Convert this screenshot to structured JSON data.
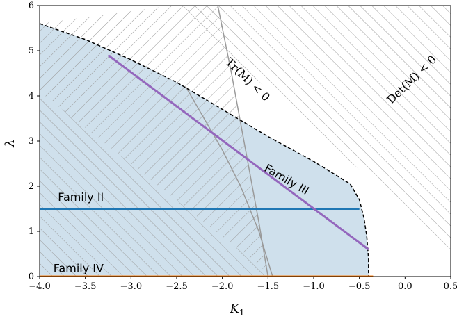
{
  "chart_data": {
    "type": "line",
    "xlabel_main": "K",
    "xlabel_sub": "1",
    "ylabel": "λ",
    "xlim": [
      -4.0,
      0.5
    ],
    "ylim": [
      0,
      6
    ],
    "xticks": [
      "−4.0",
      "−3.5",
      "−3.0",
      "−2.5",
      "−2.0",
      "−1.5",
      "−1.0",
      "−0.5",
      "0.0",
      "0.5"
    ],
    "yticks": [
      "0",
      "1",
      "2",
      "3",
      "4",
      "5",
      "6"
    ],
    "colors": {
      "family_II": "#1f77b4",
      "family_III": "#9467bd",
      "family_IV": "#ff7f0e",
      "fill": "#cfe0ec",
      "hatch": "#9a9a9a",
      "boundary": "#000000"
    },
    "series": [
      {
        "name": "Family II",
        "x": [
          -4.0,
          -0.5
        ],
        "y": [
          1.5,
          1.5
        ]
      },
      {
        "name": "Family III",
        "x": [
          -3.25,
          -0.4
        ],
        "y": [
          4.9,
          0.6
        ]
      },
      {
        "name": "Family IV",
        "x": [
          -4.0,
          -0.35
        ],
        "y": [
          0.0,
          0.0
        ]
      }
    ],
    "stable_region_boundary": {
      "x": [
        -4.0,
        -3.5,
        -3.0,
        -2.5,
        -2.0,
        -1.5,
        -1.0,
        -0.8,
        -0.6,
        -0.5,
        -0.45,
        -0.42,
        -0.4,
        -0.4
      ],
      "y": [
        5.6,
        5.25,
        4.8,
        4.3,
        3.7,
        3.1,
        2.55,
        2.3,
        2.05,
        1.7,
        1.3,
        0.9,
        0.4,
        0.0
      ]
    },
    "trace_boundary_curve": {
      "x": [
        -2.05,
        -1.9,
        -1.8,
        -1.7,
        -1.6,
        -1.5
      ],
      "y": [
        6.0,
        4.5,
        3.4,
        2.3,
        1.2,
        0.0
      ]
    },
    "det_boundary_curve": {
      "x": [
        -2.4,
        -2.2,
        -2.0,
        -1.8,
        -1.6,
        -1.45
      ],
      "y": [
        4.2,
        3.5,
        2.8,
        2.0,
        1.0,
        0.0
      ]
    },
    "region_labels": [
      {
        "text": "Tr(M) < 0",
        "x": -1.75,
        "y": 4.3,
        "rotation": 44
      },
      {
        "text": "Det(M) < 0",
        "x": 0.1,
        "y": 4.3,
        "rotation": -44
      }
    ],
    "series_labels": [
      {
        "text": "Family II",
        "x": -3.8,
        "y": 1.68
      },
      {
        "text": "Family III",
        "x": -1.55,
        "y": 2.35,
        "rotation": 30
      },
      {
        "text": "Family IV",
        "x": -3.85,
        "y": 0.1
      }
    ]
  }
}
